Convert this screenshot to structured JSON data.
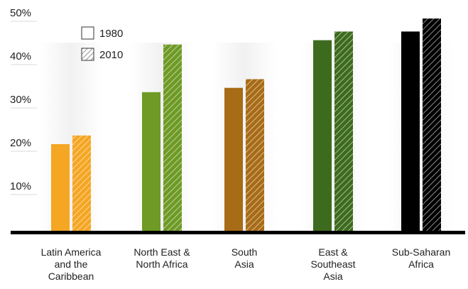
{
  "chart_data": {
    "type": "bar",
    "categories": [
      [
        "Latin America",
        "and the",
        "Caribbean"
      ],
      [
        "North East &",
        "North Africa"
      ],
      [
        "South",
        "Asia"
      ],
      [
        "East &",
        "Southeast",
        "Asia"
      ],
      [
        "Sub-Saharan",
        "Africa"
      ]
    ],
    "series": [
      {
        "name": "1980",
        "values": [
          20,
          32,
          33,
          44,
          46
        ],
        "pattern": "solid"
      },
      {
        "name": "2010",
        "values": [
          22,
          43,
          35,
          46,
          49
        ],
        "pattern": "hatched"
      }
    ],
    "category_colors": [
      "#f5a623",
      "#6e9a25",
      "#a86b16",
      "#3d6b1e",
      "#000000"
    ],
    "ylim": [
      0,
      50
    ],
    "yticks": [
      10,
      20,
      30,
      40,
      50
    ],
    "ytick_labels": [
      "10%",
      "20%",
      "30%",
      "40%",
      "50%"
    ],
    "legend": {
      "placement": "top-left",
      "items": [
        {
          "label": "1980",
          "pattern": "solid"
        },
        {
          "label": "2010",
          "pattern": "hatched"
        }
      ]
    },
    "title": "",
    "xlabel": "",
    "ylabel": "",
    "grid": "dashed-short"
  }
}
